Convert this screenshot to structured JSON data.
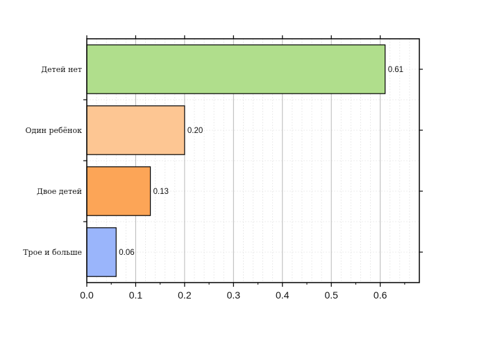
{
  "chart_data": {
    "type": "bar",
    "orientation": "horizontal",
    "categories": [
      "Детей нет",
      "Один ребёнок",
      "Двое детей",
      "Трое и больше"
    ],
    "values": [
      0.61,
      0.2,
      0.13,
      0.06
    ],
    "value_labels": [
      "0.61",
      "0.20",
      "0.13",
      "0.06"
    ],
    "colors": [
      "#b0de8c",
      "#fdc693",
      "#fca557",
      "#9ab5fb"
    ],
    "xlim": [
      0,
      0.68
    ],
    "xticks": [
      0.0,
      0.1,
      0.2,
      0.3,
      0.4,
      0.5,
      0.6
    ],
    "xtick_labels": [
      "0.0",
      "0.1",
      "0.2",
      "0.3",
      "0.4",
      "0.5",
      "0.6"
    ],
    "grid": true,
    "title": "",
    "xlabel": "",
    "ylabel": ""
  }
}
